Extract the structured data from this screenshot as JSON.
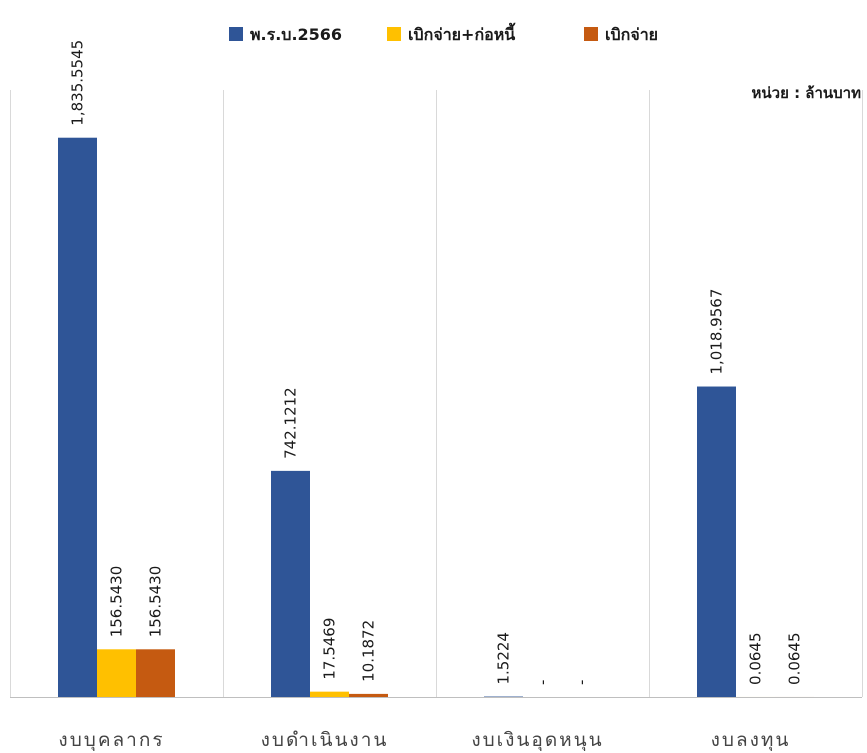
{
  "unit_label": "หน่วย : ล้านบาท",
  "colors": {
    "budget": "#2f5597",
    "disbursed_plus_commitment": "#ffc000",
    "disbursed": "#c55a11",
    "gridline": "#d9d9d9",
    "axis": "#bfbfbf"
  },
  "chart_data": {
    "type": "bar",
    "categories": [
      "งบบุคลากร",
      "งบดำเนินงาน",
      "งบเงินอุดหนุน",
      "งบลงทุน"
    ],
    "series": [
      {
        "name": "พ.ร.บ.2566",
        "values": [
          1835.5545,
          742.1212,
          1.5224,
          1018.9567
        ],
        "labels": [
          "1,835.5545",
          "742.1212",
          "1.5224",
          "1,018.9567"
        ]
      },
      {
        "name": "เบิกจ่าย+ก่อหนี้",
        "values": [
          156.543,
          17.5469,
          0,
          0.0645
        ],
        "labels": [
          "156.5430",
          "17.5469",
          "-",
          "0.0645"
        ]
      },
      {
        "name": "เบิกจ่าย",
        "values": [
          156.543,
          10.1872,
          0,
          0.0645
        ],
        "labels": [
          "156.5430",
          "10.1872",
          "-",
          "0.0645"
        ]
      }
    ],
    "ylim": [
      0,
      2050
    ],
    "legend_position": "top-center",
    "grid": false
  }
}
